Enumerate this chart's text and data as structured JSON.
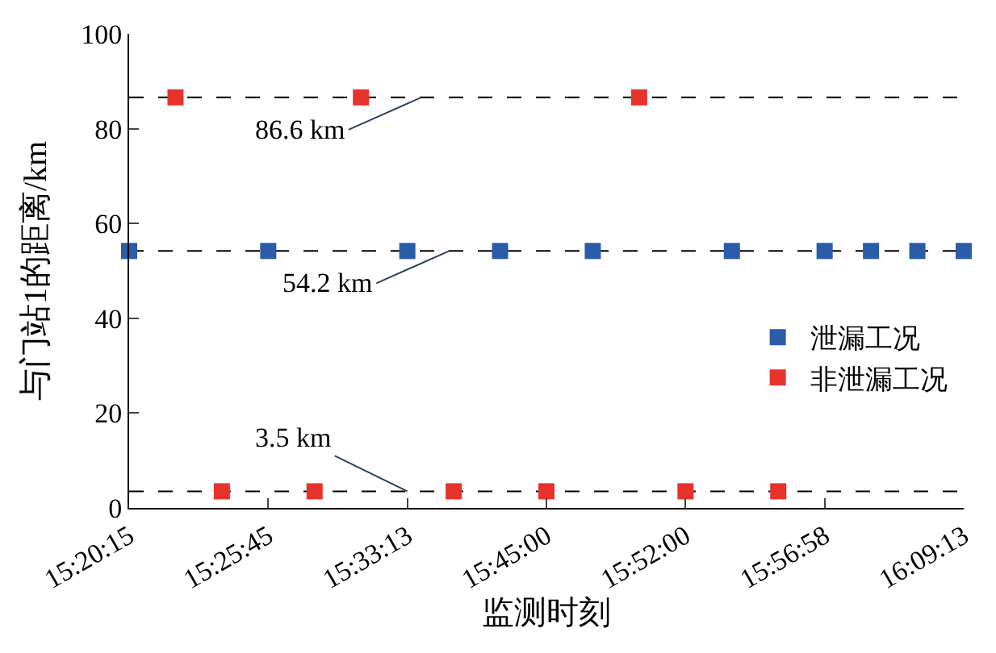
{
  "chart_data": {
    "type": "scatter",
    "xlabel": "监测时刻",
    "ylabel": "与门站1的距离/km",
    "categories": [
      "15:20:15",
      null,
      null,
      "15:25:45",
      null,
      null,
      "15:33:13",
      null,
      null,
      "15:45:00",
      null,
      null,
      "15:52:00",
      null,
      null,
      "15:56:58",
      null,
      null,
      "16:09:13"
    ],
    "ylim": [
      0,
      100
    ],
    "yticks": [
      0,
      20,
      40,
      60,
      80,
      100
    ],
    "series": [
      {
        "name": "泄漏工况",
        "color": "#2a5caa",
        "values": [
          54.2,
          null,
          null,
          54.2,
          null,
          null,
          54.2,
          null,
          54.2,
          null,
          54.2,
          null,
          null,
          54.2,
          null,
          54.2,
          54.2,
          54.2,
          54.2
        ]
      },
      {
        "name": "非泄漏工况",
        "color": "#e8322e",
        "values": [
          null,
          86.6,
          3.5,
          null,
          3.5,
          86.6,
          null,
          3.5,
          null,
          3.5,
          null,
          86.6,
          3.5,
          null,
          3.5,
          null,
          null,
          null,
          null
        ]
      }
    ],
    "ref_lines": [
      {
        "axis": "y",
        "value": 86.6,
        "line_style": "dashed",
        "color": "#000000"
      },
      {
        "axis": "y",
        "value": 54.2,
        "line_style": "dashed",
        "color": "#000000"
      },
      {
        "axis": "y",
        "value": 3.5,
        "line_style": "dashed",
        "color": "#000000"
      }
    ],
    "annotations": [
      {
        "text": "86.6 km",
        "y": 86.6
      },
      {
        "text": "54.2 km",
        "y": 54.2
      },
      {
        "text": "3.5 km",
        "y": 3.5
      }
    ],
    "marker": "square",
    "legend": "right",
    "grid": false
  }
}
